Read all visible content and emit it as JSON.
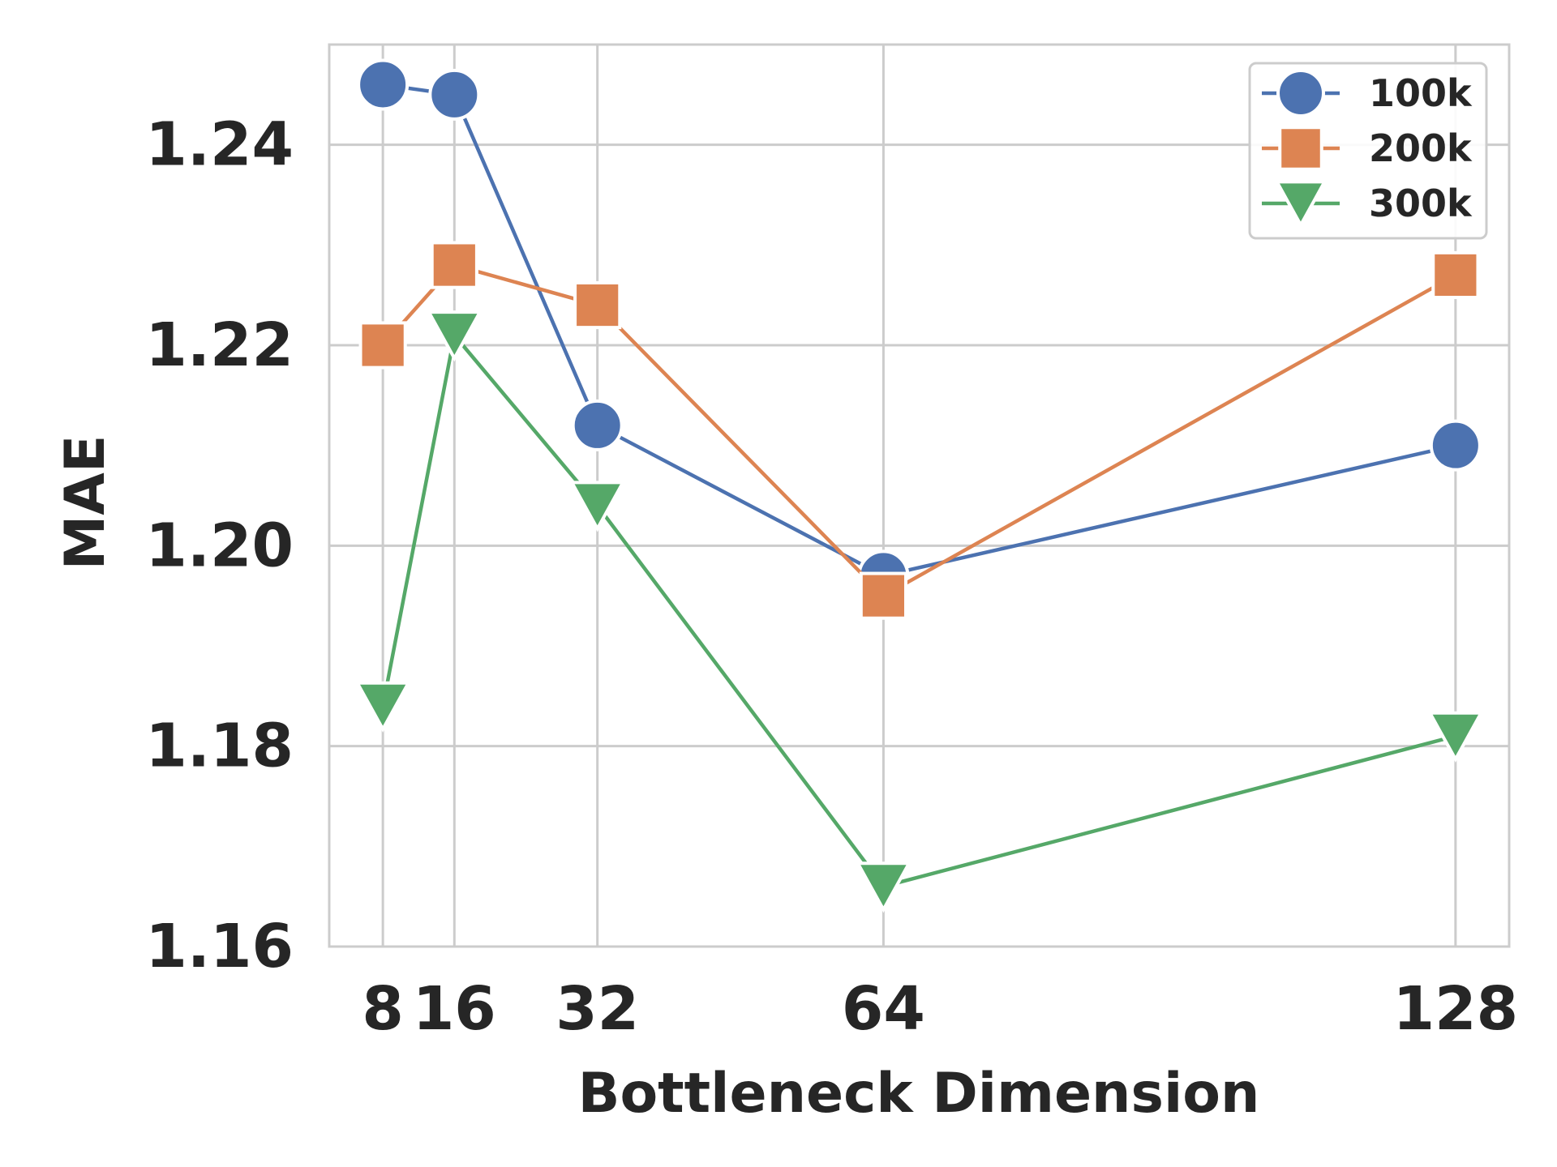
{
  "chart_data": {
    "type": "line",
    "title": "",
    "xlabel": "Bottleneck Dimension",
    "ylabel": "MAE",
    "x": [
      8,
      16,
      32,
      64,
      128
    ],
    "xtick_labels": [
      "8",
      "16",
      "32",
      "64",
      "128"
    ],
    "xlim": [
      2,
      134
    ],
    "ylim": [
      1.16,
      1.25
    ],
    "yticks": [
      1.16,
      1.18,
      1.2,
      1.22,
      1.24
    ],
    "ytick_labels": [
      "1.16",
      "1.18",
      "1.20",
      "1.22",
      "1.24"
    ],
    "grid": true,
    "legend_position": "top-right",
    "series": [
      {
        "name": "100k",
        "color": "#4c72b0",
        "marker": "circle",
        "line_style": "dashed-solid",
        "values": [
          1.246,
          1.245,
          1.212,
          1.197,
          1.21
        ]
      },
      {
        "name": "200k",
        "color": "#dd8452",
        "marker": "square",
        "line_style": "solid",
        "values": [
          1.22,
          1.228,
          1.224,
          1.195,
          1.227
        ]
      },
      {
        "name": "300k",
        "color": "#55a868",
        "marker": "triangle-down",
        "line_style": "solid",
        "values": [
          1.184,
          1.221,
          1.204,
          1.166,
          1.181
        ]
      }
    ]
  }
}
